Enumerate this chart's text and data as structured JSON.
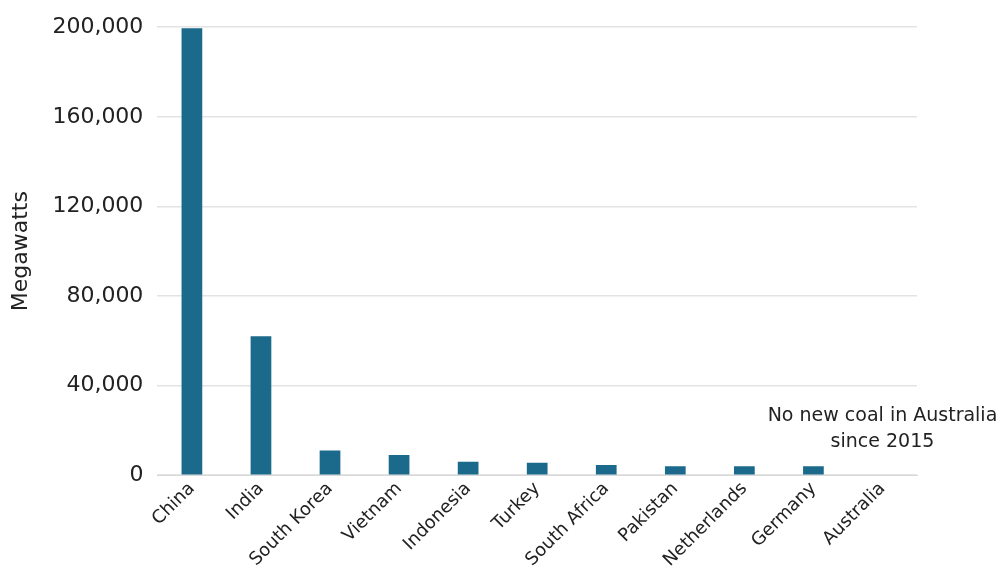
{
  "chart_data": {
    "type": "bar",
    "ylabel": "Megawatts",
    "categories": [
      "China",
      "India",
      "South Korea",
      "Vietnam",
      "Indonesia",
      "Turkey",
      "South Africa",
      "Pakistan",
      "Netherlands",
      "Germany",
      "Australia"
    ],
    "values": [
      199500,
      62000,
      11000,
      9000,
      6000,
      5500,
      4500,
      4000,
      4000,
      4000,
      0
    ],
    "color": "#1b6a8c",
    "ylim": [
      0,
      200000
    ],
    "yticks": [
      {
        "value": 0,
        "label": "0"
      },
      {
        "value": 40000,
        "label": "40,000"
      },
      {
        "value": 80000,
        "label": "80,000"
      },
      {
        "value": 120000,
        "label": "120,000"
      },
      {
        "value": 160000,
        "label": "160,000"
      },
      {
        "value": 200000,
        "label": "200,000"
      }
    ],
    "grid": "y",
    "legend": false,
    "annotations": [
      {
        "text": "No new coal in Australia since 2015",
        "x": "Australia",
        "y": 0
      }
    ]
  }
}
